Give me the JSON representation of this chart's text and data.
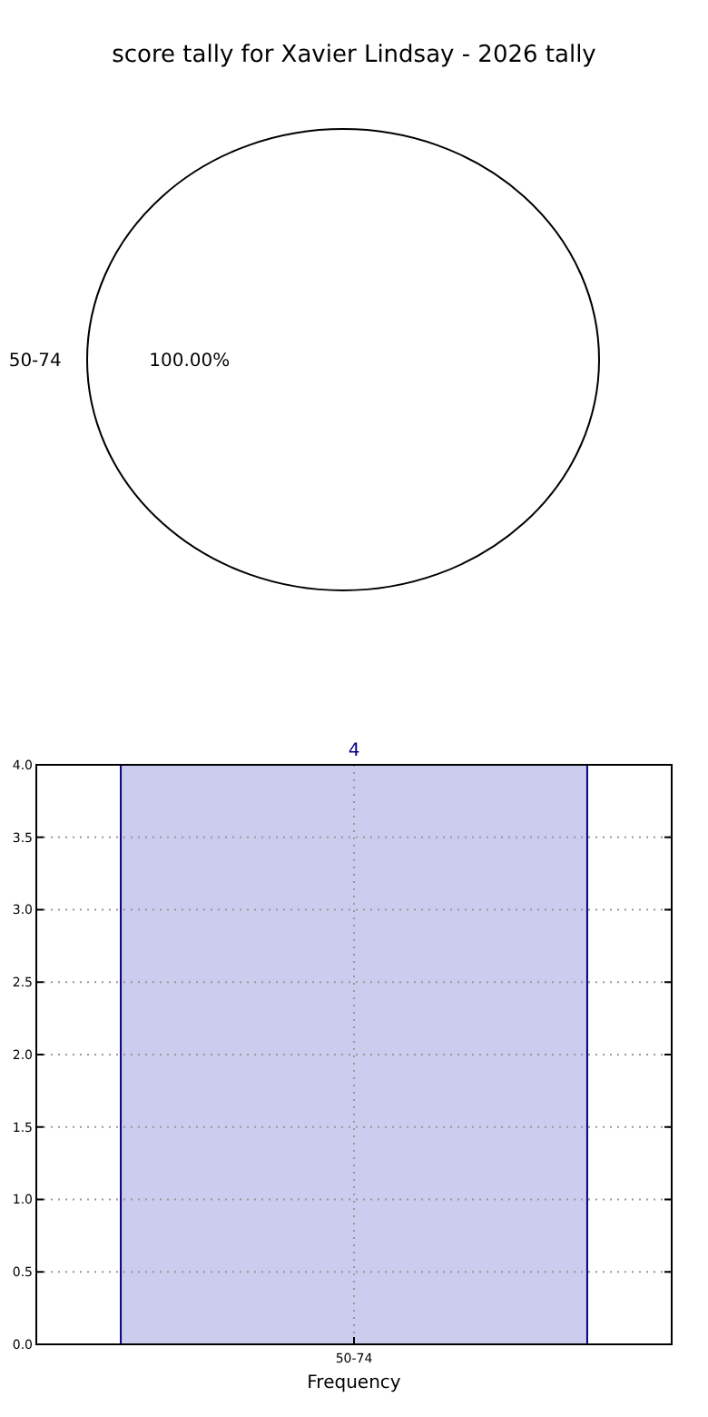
{
  "chart_data": [
    {
      "type": "pie",
      "title": "score tally for Xavier Lindsay - 2026 tally",
      "categories": [
        "50-74"
      ],
      "values": [
        100
      ],
      "colors": [
        "#ffffff"
      ],
      "value_labels": [
        "100.00%"
      ]
    },
    {
      "type": "bar",
      "categories": [
        "50-74"
      ],
      "values": [
        4
      ],
      "color": "#ccccee",
      "xlabel": "Frequency",
      "ylim": [
        0,
        4
      ],
      "yticks": [
        {
          "value": 0,
          "label": "0.0"
        },
        {
          "value": 0.5,
          "label": "0.5"
        },
        {
          "value": 1,
          "label": "1.0"
        },
        {
          "value": 1.5,
          "label": "1.5"
        },
        {
          "value": 2,
          "label": "2.0"
        },
        {
          "value": 2.5,
          "label": "2.5"
        },
        {
          "value": 3,
          "label": "3.0"
        },
        {
          "value": 3.5,
          "label": "3.5"
        },
        {
          "value": 4,
          "label": "4.0"
        }
      ],
      "grid": true,
      "data_labels": true
    }
  ]
}
